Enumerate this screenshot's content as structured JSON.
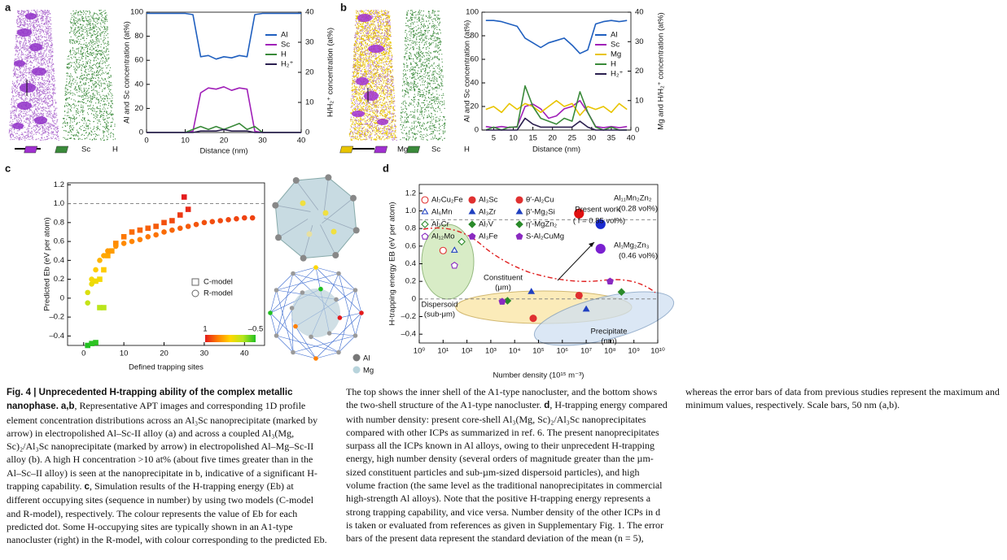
{
  "panel_labels": [
    "a",
    "b",
    "c",
    "d"
  ],
  "image_legends": {
    "a": [
      "Sc",
      "H"
    ],
    "b": [
      "Mg",
      "Sc",
      "H"
    ],
    "c": [
      "Al",
      "Mg"
    ]
  },
  "chart_data": [
    {
      "type": "line",
      "xlabel": "Distance (nm)",
      "ylabel": "Al and Sc concentration (at%)",
      "y2label": "H/H₂⁺ concentration (at%)",
      "x": [
        0,
        2,
        4,
        6,
        8,
        10,
        12,
        14,
        16,
        18,
        20,
        22,
        24,
        26,
        28,
        30,
        32,
        34,
        36,
        38,
        40
      ],
      "xlim": [
        0,
        40
      ],
      "xticks": [
        0,
        10,
        20,
        30,
        40
      ],
      "ylim": [
        0,
        100
      ],
      "yticks": [
        0,
        20,
        40,
        60,
        80,
        100
      ],
      "y2lim": [
        0,
        40
      ],
      "y2ticks": [
        0,
        10,
        20,
        30,
        40
      ],
      "legend": "right",
      "series": [
        {
          "name": "Al",
          "color": "#1f5fbf",
          "values": [
            99,
            99,
            99,
            99,
            99,
            99,
            98,
            63,
            64,
            61,
            63,
            62,
            64,
            63,
            98,
            99,
            99,
            99,
            99,
            99,
            99
          ]
        },
        {
          "name": "Sc",
          "color": "#a020b8",
          "values": [
            0,
            0,
            0,
            0,
            0,
            0,
            1,
            33,
            37,
            36,
            38,
            35,
            37,
            36,
            1,
            0,
            0,
            0,
            0,
            0,
            0
          ]
        },
        {
          "name": "H",
          "color": "#3a8a3a",
          "axis": "y2",
          "values": [
            0,
            0,
            0,
            0,
            0,
            0,
            1,
            2,
            1,
            2,
            1,
            2,
            3,
            1,
            2,
            0,
            0,
            0,
            0,
            0,
            0
          ]
        },
        {
          "name": "H₂⁺",
          "color": "#2b1f4f",
          "axis": "y2",
          "values": [
            0,
            0,
            0,
            0,
            0,
            0,
            0,
            0.5,
            0.5,
            0.5,
            1,
            0.5,
            0.5,
            0.5,
            0,
            0,
            0,
            0,
            0,
            0,
            0
          ]
        }
      ]
    },
    {
      "type": "line",
      "xlabel": "Distance (nm)",
      "ylabel": "Al and Sc concentration (at%)",
      "y2label": "Mg and H/H₂⁺ concentration (at%)",
      "x": [
        3,
        5,
        7,
        9,
        11,
        13,
        15,
        17,
        19,
        21,
        23,
        25,
        27,
        29,
        31,
        33,
        35,
        37,
        39
      ],
      "xlim": [
        2,
        40
      ],
      "xticks": [
        5,
        10,
        15,
        20,
        25,
        30,
        35,
        40
      ],
      "ylim": [
        0,
        100
      ],
      "yticks": [
        0,
        20,
        40,
        60,
        80,
        100
      ],
      "y2lim": [
        0,
        40
      ],
      "y2ticks": [
        0,
        10,
        20,
        30,
        40
      ],
      "legend": "right",
      "series": [
        {
          "name": "Al",
          "color": "#1f5fbf",
          "values": [
            93,
            93,
            92,
            90,
            88,
            78,
            74,
            70,
            74,
            76,
            78,
            72,
            65,
            68,
            90,
            92,
            93,
            92,
            93
          ]
        },
        {
          "name": "Sc",
          "color": "#a020b8",
          "values": [
            3,
            2,
            3,
            2,
            3,
            20,
            22,
            18,
            10,
            12,
            18,
            20,
            25,
            15,
            3,
            2,
            3,
            2,
            3
          ]
        },
        {
          "name": "Mg",
          "color": "#e8c400",
          "axis": "y2",
          "values": [
            7,
            8,
            6,
            9,
            7,
            9,
            8,
            6,
            8,
            10,
            8,
            9,
            5,
            8,
            7,
            8,
            6,
            9,
            7
          ]
        },
        {
          "name": "H",
          "color": "#3a8a3a",
          "axis": "y2",
          "values": [
            0,
            1,
            0,
            1,
            1,
            15,
            8,
            4,
            3,
            2,
            4,
            3,
            13,
            6,
            1,
            0,
            1,
            0,
            0
          ]
        },
        {
          "name": "H₂⁺",
          "color": "#2b1f4f",
          "axis": "y2",
          "values": [
            0,
            0,
            0,
            0,
            0,
            4,
            2,
            1,
            1,
            1,
            1,
            1,
            3,
            1,
            0,
            0,
            0,
            0,
            0
          ]
        }
      ]
    },
    {
      "type": "scatter",
      "xlabel": "Defined trapping sites",
      "ylabel": "Predicted Eb (eV per atom)",
      "xlim": [
        -4,
        45
      ],
      "xticks": [
        0,
        10,
        20,
        30,
        40
      ],
      "ylim": [
        -0.5,
        1.22
      ],
      "yticks": [
        {
          "value": -0.4,
          "label": "–0.4"
        },
        {
          "value": -0.2,
          "label": "–0.2"
        },
        0,
        0.2,
        0.4,
        0.6,
        0.8,
        {
          "value": 1,
          "label": "1.0"
        },
        1.2
      ],
      "ref_lines": [
        1
      ],
      "clim": [
        1,
        -0.5
      ],
      "colorscale": [
        "#e41a1c",
        "#ff7f00",
        "#ffd700",
        "#b5e61d",
        "#22c022"
      ],
      "colorbar_ticks": [
        1,
        {
          "value": -0.5,
          "label": "–0.5"
        }
      ],
      "series": [
        {
          "name": "C-model",
          "marker": "square",
          "x": [
            1,
            2,
            3,
            3,
            4,
            4,
            5,
            5,
            6,
            7,
            8,
            10,
            12,
            14,
            16,
            18,
            20,
            22,
            24,
            25,
            26
          ],
          "values": [
            -0.5,
            -0.48,
            -0.47,
            0.18,
            0.2,
            -0.1,
            -0.1,
            0.3,
            0.45,
            0.5,
            0.58,
            0.65,
            0.7,
            0.72,
            0.74,
            0.76,
            0.8,
            0.82,
            0.88,
            1.07,
            0.94
          ]
        },
        {
          "name": "R-model",
          "marker": "circle",
          "x": [
            1,
            1,
            2,
            2,
            3,
            4,
            5,
            6,
            8,
            10,
            12,
            14,
            16,
            18,
            20,
            22,
            24,
            26,
            28,
            30,
            32,
            34,
            36,
            38,
            40,
            42
          ],
          "values": [
            -0.05,
            0.06,
            0.15,
            0.2,
            0.3,
            0.4,
            0.45,
            0.5,
            0.55,
            0.58,
            0.6,
            0.62,
            0.65,
            0.67,
            0.7,
            0.72,
            0.74,
            0.76,
            0.78,
            0.8,
            0.81,
            0.82,
            0.83,
            0.84,
            0.85,
            0.85
          ]
        }
      ]
    },
    {
      "type": "scatter",
      "xlabel": "Number density (10¹⁵ m⁻³)",
      "ylabel": "H-trapping energy EB (eV per atom)",
      "log_x": true,
      "xlim": [
        1,
        10000000000
      ],
      "xticks": [
        {
          "value": 1,
          "label": "10⁰"
        },
        {
          "value": 10,
          "label": "10¹"
        },
        {
          "value": 100,
          "label": "10²"
        },
        {
          "value": 1000,
          "label": "10³"
        },
        {
          "value": 10000,
          "label": "10⁴"
        },
        {
          "value": 100000,
          "label": "10⁵"
        },
        {
          "value": 1000000,
          "label": "10⁶"
        },
        {
          "value": 10000000,
          "label": "10⁷"
        },
        {
          "value": 100000000,
          "label": "10⁸"
        },
        {
          "value": 1000000000,
          "label": "10⁹"
        },
        {
          "value": 10000000000,
          "label": "10¹⁰"
        }
      ],
      "ylim": [
        -0.5,
        1.3
      ],
      "yticks": [
        {
          "value": -0.4,
          "label": "–0.4"
        },
        {
          "value": -0.2,
          "label": "–0.2"
        },
        0,
        0.2,
        0.4,
        0.6,
        0.8,
        {
          "value": 1,
          "label": "1.0"
        },
        1.2
      ],
      "ref_lines": [
        0,
        0.9
      ],
      "annotations": [
        "Present work",
        "( f = 0.85 vol%)",
        "Al₁₁Mn₂Zn₂",
        "(0.28 vol%)",
        "Al₁Mg₂Zn₃",
        "(0.46 vol%)",
        "Constituent",
        "(μm)",
        "Dispersoid",
        "(sub-μm)",
        "Precipitate",
        "(nm)"
      ],
      "series": [
        {
          "name": "Al₇Cu₂Fe",
          "color": "#e03030",
          "marker": "circle",
          "filled": false,
          "x": [
            10
          ],
          "values": [
            0.55
          ]
        },
        {
          "name": "Al₆Mn",
          "color": "#2040c0",
          "marker": "triangle",
          "filled": false,
          "x": [
            30
          ],
          "values": [
            0.55
          ]
        },
        {
          "name": "Al₇Cr",
          "color": "#2a8a2a",
          "marker": "diamond",
          "filled": false,
          "x": [
            60
          ],
          "values": [
            0.65
          ]
        },
        {
          "name": "Al₁₂Mo",
          "color": "#8a2ac0",
          "marker": "pentagon",
          "filled": false,
          "x": [
            30
          ],
          "values": [
            0.38
          ]
        },
        {
          "name": "Al₃Sc",
          "color": "#e03030",
          "marker": "circle",
          "filled": true,
          "x": [
            5000000
          ],
          "values": [
            0.04
          ]
        },
        {
          "name": "Al₃Zr",
          "color": "#2040c0",
          "marker": "triangle",
          "filled": true,
          "x": [
            50000
          ],
          "values": [
            0.08
          ]
        },
        {
          "name": "Al₇V",
          "color": "#2a8a2a",
          "marker": "diamond",
          "filled": true,
          "x": [
            5000
          ],
          "values": [
            -0.02
          ]
        },
        {
          "name": "Al₃Fe",
          "color": "#8a2ac0",
          "marker": "pentagon",
          "filled": true,
          "x": [
            3000
          ],
          "values": [
            -0.03
          ]
        },
        {
          "name": "θ′-Al₂Cu",
          "color": "#e03030",
          "marker": "circle",
          "filled": true,
          "x": [
            60000
          ],
          "values": [
            -0.22
          ]
        },
        {
          "name": "β′-Mg₂Si",
          "color": "#2040c0",
          "marker": "triangle",
          "filled": true,
          "x": [
            10000000
          ],
          "values": [
            -0.12
          ]
        },
        {
          "name": "η′-MgZn₂",
          "color": "#2a8a2a",
          "marker": "diamond",
          "filled": true,
          "x": [
            300000000
          ],
          "values": [
            0.08
          ]
        },
        {
          "name": "S-Al₂CuMg",
          "color": "#8a2ac0",
          "marker": "pentagon",
          "filled": true,
          "x": [
            100000000
          ],
          "values": [
            0.2
          ]
        }
      ],
      "highlight": [
        {
          "color": "#e01010",
          "x": [
            5000000
          ],
          "values": [
            0.97
          ]
        },
        {
          "color": "#1a2ad0",
          "x": [
            40000000
          ],
          "values": [
            0.85
          ]
        },
        {
          "color": "#7a20d0",
          "x": [
            40000000
          ],
          "values": [
            0.57
          ]
        }
      ]
    }
  ],
  "caption": {
    "title": "Fig. 4 | Unprecedented H-trapping ability of the complex metallic nanophase.",
    "parts": [
      {
        "label": "a,b",
        "text": ", Representative APT images and corresponding 1D profile element concentration distributions across an Al₃Sc nanoprecipitate (marked by arrow) in electropolished Al–Sc-II alloy (a) and across a coupled Al₃(Mg, Sc)₂/Al₃Sc nanoprecipitate (marked by arrow) in electropolished Al–Mg–Sc-II alloy (b). A high H concentration >10 at% (about five times greater than in the Al–Sc–II alloy) is seen at the nanoprecipitate in b, indicative of a significant H-trapping capability."
      },
      {
        "label": "c",
        "text": ", Simulation results of the H-trapping energy (Eb) at different occupying sites (sequence in number) by using two models (C-model and R-model), respectively. The colour represents the value of Eb for each predicted dot. Some H-occupying sites are typically shown in an A1-type nanocluster (right) in the R-model, with colour corresponding to the predicted Eb. The top shows the inner shell of the A1-type nanocluster, and the bottom shows the two-shell structure of the A1-type nanocluster."
      },
      {
        "label": "d",
        "text": ", H-trapping energy compared with number density: present core-shell Al₃(Mg, Sc)₂/Al₃Sc nanoprecipitates compared with other ICPs as summarized in ref. 6. The present nanoprecipitates surpass all the ICPs known in Al alloys, owing to their unprecedent H-trapping energy, high number density (several orders of magnitude greater than the µm-sized constituent particles and sub-µm-sized dispersoid particles), and high volume fraction (the same level as the traditional nanoprecipitates in commercial high-strength Al alloys). Note that the positive H-trapping energy represents a strong trapping capability, and vice versa. Number density of the other ICPs in d is taken or evaluated from references as given in Supplementary Fig. 1. The error bars of the present data represent the standard deviation of the mean (n = 5), whereas the error bars of data from previous studies represent the maximum and minimum values, respectively. Scale bars, 50 nm (a,b)."
      }
    ]
  }
}
